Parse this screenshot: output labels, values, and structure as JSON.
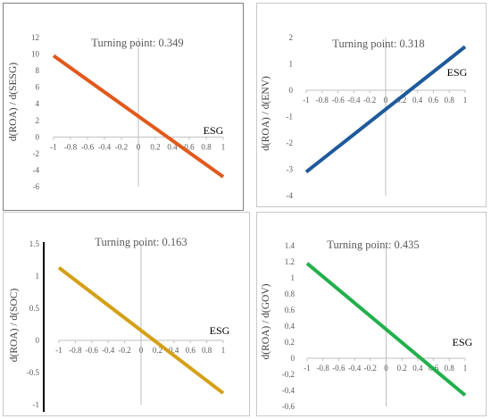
{
  "chart_data": [
    {
      "type": "line",
      "title": "Turning point: 0.349",
      "xlabel": "ESG",
      "ylabel": "d(ROA) / d(SESG)",
      "xlim": [
        -1,
        1
      ],
      "ylim": [
        -6,
        12
      ],
      "x_ticks": [
        "-1",
        "-0.8",
        "-0.6",
        "-0.4",
        "-0.2",
        "0",
        "0.2",
        "0.4",
        "0.6",
        "0.8",
        "1"
      ],
      "y_ticks": [
        "-6",
        "-4",
        "-2",
        "0",
        "2",
        "4",
        "6",
        "8",
        "10",
        "12"
      ],
      "series": [
        {
          "x": [
            -1,
            1
          ],
          "y": [
            9.8,
            -4.8
          ]
        }
      ],
      "color": "#e2591b"
    },
    {
      "type": "line",
      "title": "Turning point: 0.318",
      "xlabel": "ESG",
      "ylabel": "d(ROA) / d(ENV)",
      "xlim": [
        -1,
        1
      ],
      "ylim": [
        -4,
        2
      ],
      "x_ticks": [
        "-1",
        "-0.8",
        "-0.6",
        "-0.4",
        "-0.2",
        "0",
        "0.2",
        "0.4",
        "0.6",
        "0.8",
        "1"
      ],
      "y_ticks": [
        "-4",
        "-3",
        "-2",
        "-1",
        "0",
        "1",
        "2"
      ],
      "series": [
        {
          "x": [
            -1,
            1
          ],
          "y": [
            -3.1,
            1.65
          ]
        }
      ],
      "color": "#1e5a9c"
    },
    {
      "type": "line",
      "title": "Turning point: 0.163",
      "xlabel": "ESG",
      "ylabel": "d(ROA) / d(SOC)",
      "xlim": [
        -1,
        1
      ],
      "ylim": [
        -1,
        1.5
      ],
      "x_ticks": [
        "-1",
        "-0.8",
        "-0.6",
        "-0.4",
        "-0.2",
        "0",
        "0.2",
        "0.4",
        "0.6",
        "0.8",
        "1"
      ],
      "y_ticks": [
        "-1",
        "-0.5",
        "0",
        "0.5",
        "1",
        "1.5"
      ],
      "series": [
        {
          "x": [
            -1,
            1
          ],
          "y": [
            1.13,
            -0.82
          ]
        }
      ],
      "color": "#d4a017"
    },
    {
      "type": "line",
      "title": "Turning point: 0.435",
      "xlabel": "ESG",
      "ylabel": "d(ROA) / d(GOV)",
      "xlim": [
        -1,
        1
      ],
      "ylim": [
        -0.6,
        1.4
      ],
      "x_ticks": [
        "-1",
        "-0.8",
        "-0.6",
        "-0.4",
        "-0.2",
        "0",
        "0.2",
        "0.4",
        "0.6",
        "0.8",
        "1"
      ],
      "y_ticks": [
        "-0.6",
        "-0.4",
        "-0.2",
        "0",
        "0.2",
        "0.4",
        "0.6",
        "0.8",
        "1",
        "1.2",
        "1.4"
      ],
      "series": [
        {
          "x": [
            -1,
            1
          ],
          "y": [
            1.18,
            -0.46
          ]
        }
      ],
      "color": "#22b04c"
    }
  ]
}
